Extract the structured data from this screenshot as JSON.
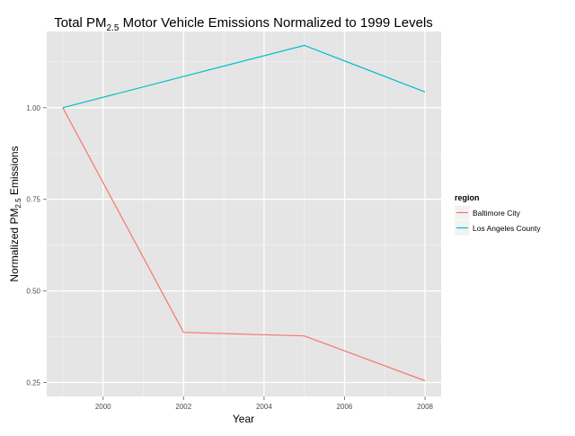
{
  "chart_data": {
    "type": "line",
    "title": {
      "prefix": "Total PM",
      "subscript": "2.5",
      "suffix": " Motor Vehicle Emissions Normalized to 1999 Levels"
    },
    "xlabel": "Year",
    "ylabel": {
      "prefix": "Normalized PM",
      "subscript": "2.5",
      "suffix": " Emissions"
    },
    "xlim": [
      1998.6,
      2008.4
    ],
    "ylim": [
      0.212,
      1.208
    ],
    "x_ticks": [
      2000,
      2002,
      2004,
      2006,
      2008
    ],
    "y_ticks": [
      0.25,
      0.5,
      0.75,
      1.0
    ],
    "x_tick_labels": [
      "2000",
      "2002",
      "2004",
      "2006",
      "2008"
    ],
    "y_tick_labels": [
      "0.25",
      "0.50",
      "0.75",
      "1.00"
    ],
    "grid": true,
    "legend": {
      "title": "region",
      "position": "right"
    },
    "series": [
      {
        "name": "Baltimore City",
        "color": "#F8766D",
        "x": [
          1999,
          2002,
          2005,
          2008
        ],
        "y": [
          1.0,
          0.387,
          0.377,
          0.255
        ]
      },
      {
        "name": "Los Angeles County",
        "color": "#00BFC4",
        "x": [
          1999,
          2002,
          2005,
          2008
        ],
        "y": [
          1.0,
          1.085,
          1.17,
          1.043
        ]
      }
    ]
  }
}
